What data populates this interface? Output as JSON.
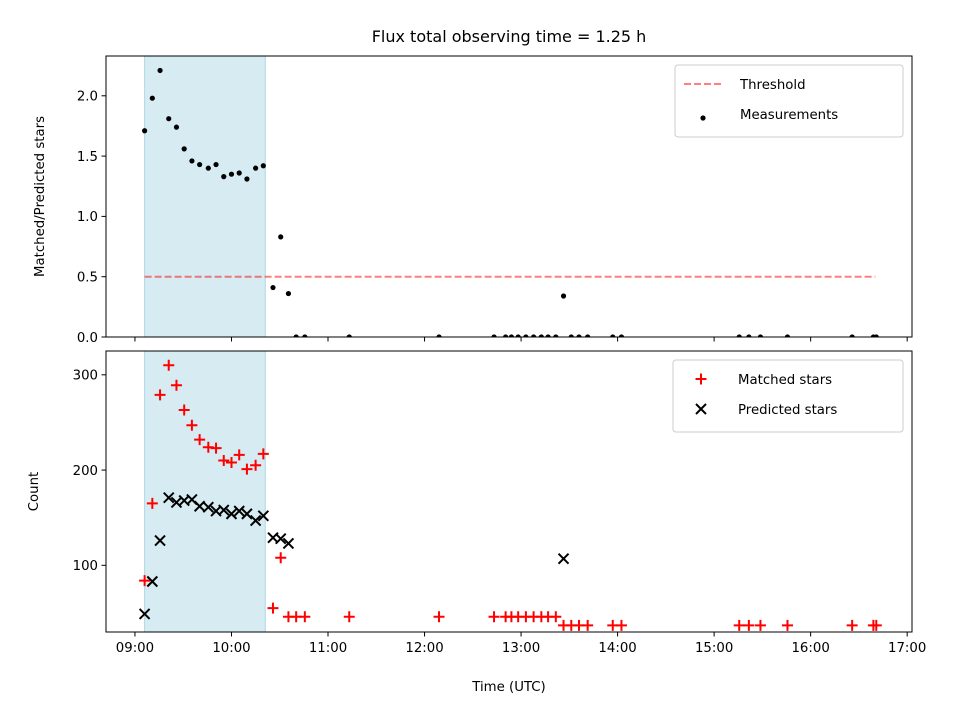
{
  "chart_data": {
    "title": "Flux total observing time = 1.25 h",
    "xlabel": "Time (UTC)",
    "x_ticks": [
      "09:00",
      "10:00",
      "11:00",
      "12:00",
      "13:00",
      "14:00",
      "15:00",
      "16:00",
      "17:00"
    ],
    "x_tick_hours": [
      9,
      10,
      11,
      12,
      13,
      14,
      15,
      16,
      17
    ],
    "xlim_hours": [
      8.7,
      17.05
    ],
    "highlight_span_hours": [
      9.1,
      10.35
    ],
    "colors": {
      "highlight": "#add8e6",
      "threshold": "#ff0000",
      "matched": "#ff0000",
      "predicted": "#000000",
      "measurements": "#000000"
    },
    "panels": [
      {
        "type": "scatter",
        "ylabel": "Matched/Predicted stars",
        "ylim": [
          0,
          2.33
        ],
        "y_ticks": [
          0.0,
          0.5,
          1.0,
          1.5,
          2.0
        ],
        "y_tick_labels": [
          "0.0",
          "0.5",
          "1.0",
          "1.5",
          "2.0"
        ],
        "legend_position": "top-right",
        "threshold": {
          "name": "Threshold",
          "y": 0.5,
          "x_range_hours": [
            9.1,
            16.67
          ]
        },
        "series": [
          {
            "name": "Measurements",
            "marker": "dot",
            "points": [
              [
                9.1,
                1.71
              ],
              [
                9.18,
                1.98
              ],
              [
                9.26,
                2.21
              ],
              [
                9.35,
                1.81
              ],
              [
                9.43,
                1.74
              ],
              [
                9.51,
                1.56
              ],
              [
                9.59,
                1.46
              ],
              [
                9.67,
                1.43
              ],
              [
                9.76,
                1.4
              ],
              [
                9.84,
                1.43
              ],
              [
                9.92,
                1.33
              ],
              [
                10.0,
                1.35
              ],
              [
                10.08,
                1.36
              ],
              [
                10.16,
                1.31
              ],
              [
                10.25,
                1.4
              ],
              [
                10.33,
                1.42
              ],
              [
                10.43,
                0.41
              ],
              [
                10.51,
                0.83
              ],
              [
                10.59,
                0.36
              ],
              [
                10.67,
                0.0
              ],
              [
                10.76,
                0.0
              ],
              [
                11.22,
                0.0
              ],
              [
                12.15,
                0.0
              ],
              [
                12.72,
                0.0
              ],
              [
                12.84,
                0.0
              ],
              [
                12.9,
                0.0
              ],
              [
                12.97,
                0.0
              ],
              [
                13.05,
                0.0
              ],
              [
                13.13,
                0.0
              ],
              [
                13.21,
                0.0
              ],
              [
                13.28,
                0.0
              ],
              [
                13.36,
                0.0
              ],
              [
                13.44,
                0.34
              ],
              [
                13.52,
                0.0
              ],
              [
                13.6,
                0.0
              ],
              [
                13.69,
                0.0
              ],
              [
                13.95,
                0.0
              ],
              [
                14.04,
                0.0
              ],
              [
                15.26,
                0.0
              ],
              [
                15.36,
                0.0
              ],
              [
                15.48,
                0.0
              ],
              [
                15.76,
                0.0
              ],
              [
                16.43,
                0.0
              ],
              [
                16.65,
                0.0
              ],
              [
                16.68,
                0.0
              ]
            ]
          }
        ]
      },
      {
        "type": "scatter",
        "ylabel": "Count",
        "ylim": [
          30,
          325
        ],
        "y_ticks": [
          100,
          200,
          300
        ],
        "y_tick_labels": [
          "100",
          "200",
          "300"
        ],
        "legend_position": "top-right",
        "series": [
          {
            "name": "Matched stars",
            "marker": "plus",
            "points": [
              [
                9.1,
                84
              ],
              [
                9.18,
                165
              ],
              [
                9.26,
                279
              ],
              [
                9.35,
                310
              ],
              [
                9.43,
                289
              ],
              [
                9.51,
                263
              ],
              [
                9.59,
                247
              ],
              [
                9.67,
                232
              ],
              [
                9.76,
                224
              ],
              [
                9.84,
                223
              ],
              [
                9.92,
                210
              ],
              [
                10.0,
                208
              ],
              [
                10.08,
                216
              ],
              [
                10.16,
                201
              ],
              [
                10.25,
                205
              ],
              [
                10.33,
                217
              ],
              [
                10.43,
                55
              ],
              [
                10.51,
                108
              ],
              [
                10.59,
                46
              ],
              [
                10.67,
                46
              ],
              [
                10.76,
                46
              ],
              [
                11.22,
                46
              ],
              [
                12.15,
                46
              ],
              [
                12.72,
                46
              ],
              [
                12.84,
                46
              ],
              [
                12.9,
                46
              ],
              [
                12.97,
                46
              ],
              [
                13.05,
                46
              ],
              [
                13.13,
                46
              ],
              [
                13.21,
                46
              ],
              [
                13.28,
                46
              ],
              [
                13.36,
                46
              ],
              [
                13.44,
                37
              ],
              [
                13.52,
                37
              ],
              [
                13.6,
                37
              ],
              [
                13.69,
                37
              ],
              [
                13.95,
                37
              ],
              [
                14.04,
                37
              ],
              [
                15.26,
                37
              ],
              [
                15.36,
                37
              ],
              [
                15.48,
                37
              ],
              [
                15.76,
                37
              ],
              [
                16.43,
                37
              ],
              [
                16.65,
                37
              ],
              [
                16.68,
                37
              ]
            ]
          },
          {
            "name": "Predicted stars",
            "marker": "x",
            "points": [
              [
                9.1,
                49
              ],
              [
                9.18,
                83
              ],
              [
                9.26,
                126
              ],
              [
                9.35,
                171
              ],
              [
                9.43,
                166
              ],
              [
                9.51,
                168
              ],
              [
                9.59,
                169
              ],
              [
                9.67,
                162
              ],
              [
                9.76,
                161
              ],
              [
                9.84,
                157
              ],
              [
                9.92,
                158
              ],
              [
                10.0,
                154
              ],
              [
                10.08,
                157
              ],
              [
                10.16,
                154
              ],
              [
                10.25,
                147
              ],
              [
                10.33,
                152
              ],
              [
                10.43,
                129
              ],
              [
                10.51,
                128
              ],
              [
                10.59,
                123
              ],
              [
                13.44,
                107
              ]
            ]
          }
        ]
      }
    ]
  }
}
